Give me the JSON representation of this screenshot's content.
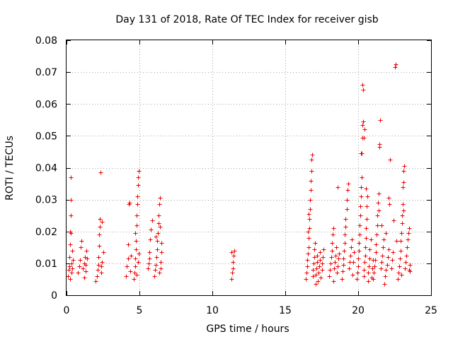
{
  "chart_data": {
    "type": "scatter",
    "title": "Day 131 of 2018, Rate Of TEC Index for receiver gisb",
    "xlabel": "GPS time / hours",
    "ylabel": "ROTI / TECUs",
    "xlim": [
      0,
      25
    ],
    "ylim": [
      0,
      0.08
    ],
    "xticks": [
      "0",
      "5",
      "10",
      "15",
      "20",
      "25"
    ],
    "yticks": [
      "0",
      "0.01",
      "0.02",
      "0.03",
      "0.04",
      "0.05",
      "0.06",
      "0.07",
      "0.08"
    ],
    "grid": true,
    "marker": "+",
    "color": "#ee0000",
    "series": [
      {
        "name": "ROTI",
        "points": [
          [
            0.1,
            0.006
          ],
          [
            0.15,
            0.008
          ],
          [
            0.2,
            0.009
          ],
          [
            0.2,
            0.012
          ],
          [
            0.25,
            0.016
          ],
          [
            0.25,
            0.02
          ],
          [
            0.3,
            0.0195
          ],
          [
            0.3,
            0.025
          ],
          [
            0.3,
            0.03
          ],
          [
            0.3,
            0.037
          ],
          [
            0.35,
            0.007
          ],
          [
            0.35,
            0.01
          ],
          [
            0.4,
            0.0085
          ],
          [
            0.4,
            0.014
          ],
          [
            0.45,
            0.011
          ],
          [
            0.25,
            0.005
          ],
          [
            0.8,
            0.007
          ],
          [
            0.85,
            0.009
          ],
          [
            0.9,
            0.011
          ],
          [
            0.95,
            0.015
          ],
          [
            1.0,
            0.017
          ],
          [
            1.1,
            0.0085
          ],
          [
            1.2,
            0.01
          ],
          [
            1.25,
            0.012
          ],
          [
            1.3,
            0.0095
          ],
          [
            1.35,
            0.014
          ],
          [
            1.4,
            0.0115
          ],
          [
            1.2,
            0.0055
          ],
          [
            1.3,
            0.0075
          ],
          [
            2.0,
            0.0045
          ],
          [
            2.1,
            0.006
          ],
          [
            2.15,
            0.008
          ],
          [
            2.2,
            0.0095
          ],
          [
            2.2,
            0.012
          ],
          [
            2.25,
            0.0155
          ],
          [
            2.25,
            0.019
          ],
          [
            2.3,
            0.0215
          ],
          [
            2.3,
            0.024
          ],
          [
            2.35,
            0.0385
          ],
          [
            2.4,
            0.007
          ],
          [
            2.4,
            0.009
          ],
          [
            2.45,
            0.0105
          ],
          [
            2.5,
            0.0135
          ],
          [
            2.45,
            0.023
          ],
          [
            4.1,
            0.006
          ],
          [
            4.15,
            0.009
          ],
          [
            4.2,
            0.0115
          ],
          [
            4.2,
            0.016
          ],
          [
            4.25,
            0.0285
          ],
          [
            4.3,
            0.029
          ],
          [
            4.35,
            0.0075
          ],
          [
            4.4,
            0.0125
          ],
          [
            4.6,
            0.005
          ],
          [
            4.65,
            0.007
          ],
          [
            4.7,
            0.009
          ],
          [
            4.7,
            0.0115
          ],
          [
            4.75,
            0.0145
          ],
          [
            4.75,
            0.017
          ],
          [
            4.8,
            0.022
          ],
          [
            4.8,
            0.025
          ],
          [
            4.85,
            0.0285
          ],
          [
            4.85,
            0.031
          ],
          [
            4.9,
            0.0345
          ],
          [
            4.9,
            0.037
          ],
          [
            4.95,
            0.039
          ],
          [
            4.8,
            0.0065
          ],
          [
            4.9,
            0.0105
          ],
          [
            4.95,
            0.013
          ],
          [
            4.7,
            0.0195
          ],
          [
            5.6,
            0.0085
          ],
          [
            5.65,
            0.01
          ],
          [
            5.7,
            0.0135
          ],
          [
            5.75,
            0.0175
          ],
          [
            5.8,
            0.0205
          ],
          [
            5.85,
            0.0235
          ],
          [
            5.7,
            0.0115
          ],
          [
            6.0,
            0.006
          ],
          [
            6.05,
            0.008
          ],
          [
            6.1,
            0.0095
          ],
          [
            6.15,
            0.012
          ],
          [
            6.2,
            0.0145
          ],
          [
            6.2,
            0.017
          ],
          [
            6.25,
            0.0195
          ],
          [
            6.3,
            0.0225
          ],
          [
            6.3,
            0.025
          ],
          [
            6.35,
            0.0285
          ],
          [
            6.4,
            0.0305
          ],
          [
            6.45,
            0.0105
          ],
          [
            6.5,
            0.0135
          ],
          [
            6.5,
            0.0165
          ],
          [
            6.45,
            0.0085
          ],
          [
            6.35,
            0.007
          ],
          [
            6.4,
            0.0215
          ],
          [
            6.1,
            0.0185
          ],
          [
            11.3,
            0.005
          ],
          [
            11.35,
            0.007
          ],
          [
            11.4,
            0.0085
          ],
          [
            11.4,
            0.0105
          ],
          [
            11.45,
            0.0125
          ],
          [
            11.5,
            0.014
          ],
          [
            11.3,
            0.0135
          ],
          [
            16.4,
            0.005
          ],
          [
            16.45,
            0.007
          ],
          [
            16.5,
            0.009
          ],
          [
            16.5,
            0.011
          ],
          [
            16.55,
            0.013
          ],
          [
            16.6,
            0.015
          ],
          [
            16.6,
            0.018
          ],
          [
            16.65,
            0.021
          ],
          [
            16.65,
            0.024
          ],
          [
            16.7,
            0.027
          ],
          [
            16.7,
            0.03
          ],
          [
            16.75,
            0.033
          ],
          [
            16.75,
            0.036
          ],
          [
            16.8,
            0.039
          ],
          [
            16.8,
            0.0425
          ],
          [
            16.85,
            0.044
          ],
          [
            16.9,
            0.006
          ],
          [
            16.9,
            0.008
          ],
          [
            16.95,
            0.01
          ],
          [
            17.0,
            0.012
          ],
          [
            17.0,
            0.0145
          ],
          [
            17.05,
            0.0165
          ],
          [
            17.1,
            0.0065
          ],
          [
            17.15,
            0.0085
          ],
          [
            17.2,
            0.0105
          ],
          [
            17.2,
            0.0125
          ],
          [
            17.25,
            0.0045
          ],
          [
            17.3,
            0.007
          ],
          [
            17.35,
            0.009
          ],
          [
            17.4,
            0.011
          ],
          [
            17.4,
            0.0135
          ],
          [
            17.45,
            0.0055
          ],
          [
            17.5,
            0.008
          ],
          [
            17.5,
            0.01
          ],
          [
            17.55,
            0.012
          ],
          [
            17.6,
            0.0145
          ],
          [
            17.1,
            0.0035
          ],
          [
            16.55,
            0.02
          ],
          [
            16.6,
            0.0255
          ],
          [
            18.0,
            0.006
          ],
          [
            18.05,
            0.008
          ],
          [
            18.1,
            0.01
          ],
          [
            18.15,
            0.012
          ],
          [
            18.2,
            0.014
          ],
          [
            18.2,
            0.0165
          ],
          [
            18.25,
            0.019
          ],
          [
            18.3,
            0.021
          ],
          [
            18.35,
            0.0085
          ],
          [
            18.4,
            0.0105
          ],
          [
            18.45,
            0.0125
          ],
          [
            18.5,
            0.015
          ],
          [
            18.55,
            0.007
          ],
          [
            18.6,
            0.009
          ],
          [
            18.6,
            0.034
          ],
          [
            18.65,
            0.0115
          ],
          [
            18.7,
            0.013
          ],
          [
            18.3,
            0.0045
          ],
          [
            18.9,
            0.005
          ],
          [
            18.95,
            0.0075
          ],
          [
            19.0,
            0.0095
          ],
          [
            19.0,
            0.0115
          ],
          [
            19.05,
            0.014
          ],
          [
            19.1,
            0.0165
          ],
          [
            19.1,
            0.019
          ],
          [
            19.15,
            0.0215
          ],
          [
            19.15,
            0.024
          ],
          [
            19.2,
            0.027
          ],
          [
            19.2,
            0.03
          ],
          [
            19.25,
            0.033
          ],
          [
            19.3,
            0.035
          ],
          [
            19.35,
            0.0085
          ],
          [
            19.4,
            0.0105
          ],
          [
            19.45,
            0.0125
          ],
          [
            19.5,
            0.015
          ],
          [
            19.55,
            0.0175
          ],
          [
            19.6,
            0.0065
          ],
          [
            19.65,
            0.0105
          ],
          [
            19.7,
            0.0135
          ],
          [
            19.9,
            0.005
          ],
          [
            19.95,
            0.007
          ],
          [
            20.0,
            0.009
          ],
          [
            20.0,
            0.0115
          ],
          [
            20.05,
            0.014
          ],
          [
            20.05,
            0.0165
          ],
          [
            20.1,
            0.019
          ],
          [
            20.1,
            0.022
          ],
          [
            20.15,
            0.025
          ],
          [
            20.15,
            0.028
          ],
          [
            20.2,
            0.031
          ],
          [
            20.2,
            0.034
          ],
          [
            20.25,
            0.037
          ],
          [
            20.25,
            0.0445
          ],
          [
            20.3,
            0.0495
          ],
          [
            20.3,
            0.0535
          ],
          [
            20.35,
            0.0545
          ],
          [
            20.35,
            0.0645
          ],
          [
            20.3,
            0.066
          ],
          [
            20.4,
            0.006
          ],
          [
            20.4,
            0.008
          ],
          [
            20.45,
            0.0105
          ],
          [
            20.5,
            0.0125
          ],
          [
            20.5,
            0.015
          ],
          [
            20.55,
            0.018
          ],
          [
            20.55,
            0.021
          ],
          [
            20.6,
            0.024
          ],
          [
            20.6,
            0.028
          ],
          [
            20.65,
            0.031
          ],
          [
            20.7,
            0.0045
          ],
          [
            20.7,
            0.007
          ],
          [
            20.75,
            0.009
          ],
          [
            20.8,
            0.0115
          ],
          [
            20.8,
            0.0145
          ],
          [
            20.85,
            0.0175
          ],
          [
            20.9,
            0.0055
          ],
          [
            20.95,
            0.0085
          ],
          [
            21.0,
            0.011
          ],
          [
            20.4,
            0.0495
          ],
          [
            20.45,
            0.052
          ],
          [
            20.2,
            0.0445
          ],
          [
            20.55,
            0.0335
          ],
          [
            21.0,
            0.005
          ],
          [
            21.05,
            0.007
          ],
          [
            21.1,
            0.009
          ],
          [
            21.15,
            0.011
          ],
          [
            21.2,
            0.0135
          ],
          [
            21.2,
            0.016
          ],
          [
            21.25,
            0.019
          ],
          [
            21.3,
            0.022
          ],
          [
            21.3,
            0.025
          ],
          [
            21.35,
            0.029
          ],
          [
            21.4,
            0.032
          ],
          [
            21.45,
            0.0475
          ],
          [
            21.45,
            0.0465
          ],
          [
            21.5,
            0.055
          ],
          [
            21.55,
            0.0085
          ],
          [
            21.6,
            0.0105
          ],
          [
            21.65,
            0.0125
          ],
          [
            21.7,
            0.015
          ],
          [
            21.75,
            0.0175
          ],
          [
            21.8,
            0.0035
          ],
          [
            21.85,
            0.006
          ],
          [
            21.9,
            0.008
          ],
          [
            22.0,
            0.0095
          ],
          [
            22.05,
            0.012
          ],
          [
            22.1,
            0.0145
          ],
          [
            22.1,
            0.0305
          ],
          [
            22.15,
            0.0285
          ],
          [
            22.2,
            0.0425
          ],
          [
            22.3,
            0.0085
          ],
          [
            22.35,
            0.011
          ],
          [
            22.4,
            0.0135
          ],
          [
            22.45,
            0.0235
          ],
          [
            22.5,
            0.0715
          ],
          [
            22.55,
            0.0725
          ],
          [
            22.6,
            0.017
          ],
          [
            21.4,
            0.0265
          ],
          [
            21.6,
            0.022
          ],
          [
            21.9,
            0.0195
          ],
          [
            22.7,
            0.005
          ],
          [
            22.75,
            0.007
          ],
          [
            22.8,
            0.009
          ],
          [
            22.85,
            0.0115
          ],
          [
            22.9,
            0.014
          ],
          [
            22.9,
            0.017
          ],
          [
            22.95,
            0.0195
          ],
          [
            23.0,
            0.0225
          ],
          [
            23.0,
            0.025
          ],
          [
            23.05,
            0.0285
          ],
          [
            23.05,
            0.034
          ],
          [
            23.1,
            0.0355
          ],
          [
            23.1,
            0.039
          ],
          [
            23.15,
            0.0405
          ],
          [
            23.2,
            0.0085
          ],
          [
            23.25,
            0.0105
          ],
          [
            23.3,
            0.0125
          ],
          [
            23.35,
            0.015
          ],
          [
            23.4,
            0.0175
          ],
          [
            23.45,
            0.0195
          ],
          [
            23.5,
            0.021
          ],
          [
            23.5,
            0.008
          ],
          [
            23.55,
            0.0095
          ],
          [
            23.55,
            0.0075
          ],
          [
            22.95,
            0.0065
          ],
          [
            23.1,
            0.0265
          ]
        ]
      }
    ]
  }
}
